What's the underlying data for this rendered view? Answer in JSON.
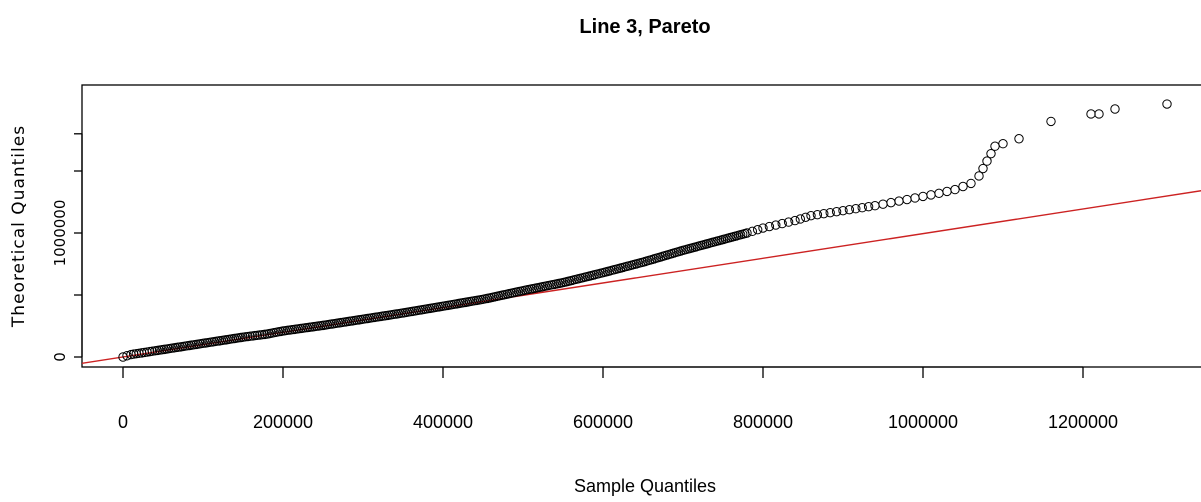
{
  "chart_data": {
    "type": "scatter",
    "title": "Line 3, Pareto",
    "xlabel": "Sample Quantiles",
    "ylabel": "Theoretical Quantiles",
    "xlim": [
      -50000,
      1350000
    ],
    "ylim": [
      -70000,
      2200000
    ],
    "x_ticks": [
      0,
      200000,
      400000,
      600000,
      800000,
      1000000,
      1200000
    ],
    "x_tick_labels": [
      "0",
      "200000",
      "400000",
      "600000",
      "800000",
      "1000000",
      "1200000"
    ],
    "y_ticks": [
      0,
      500000,
      1000000
    ],
    "y_tick_labels": [
      "0",
      "",
      "1000000"
    ],
    "grid": false,
    "point_color": "#000000",
    "line_color": "#cc2222",
    "reference_line": {
      "slope": 0.995,
      "intercept": 0
    },
    "series": [
      {
        "points": [
          [
            0,
            0
          ],
          [
            5000,
            10000
          ],
          [
            10000,
            20000
          ],
          [
            20000,
            30000
          ],
          [
            30000,
            40000
          ],
          [
            40000,
            50000
          ],
          [
            60000,
            70000
          ],
          [
            80000,
            90000
          ],
          [
            100000,
            110000
          ],
          [
            120000,
            130000
          ],
          [
            150000,
            160000
          ],
          [
            180000,
            185000
          ],
          [
            200000,
            210000
          ],
          [
            250000,
            255000
          ],
          [
            300000,
            305000
          ],
          [
            350000,
            355000
          ],
          [
            400000,
            410000
          ],
          [
            450000,
            465000
          ],
          [
            500000,
            535000
          ],
          [
            550000,
            600000
          ],
          [
            600000,
            680000
          ],
          [
            650000,
            765000
          ],
          [
            700000,
            860000
          ],
          [
            740000,
            930000
          ],
          [
            780000,
            1000000
          ],
          [
            800000,
            1040000
          ],
          [
            840000,
            1100000
          ],
          [
            860000,
            1140000
          ],
          [
            900000,
            1180000
          ],
          [
            940000,
            1220000
          ],
          [
            960000,
            1245000
          ],
          [
            980000,
            1270000
          ],
          [
            1000000,
            1295000
          ],
          [
            1020000,
            1320000
          ],
          [
            1040000,
            1350000
          ],
          [
            1060000,
            1400000
          ],
          [
            1070000,
            1460000
          ],
          [
            1090000,
            1700000
          ],
          [
            1100000,
            1720000
          ],
          [
            1120000,
            1760000
          ],
          [
            1160000,
            1900000
          ],
          [
            1210000,
            1960000
          ],
          [
            1220000,
            1960000
          ],
          [
            1240000,
            2000000
          ],
          [
            1305000,
            2040000
          ]
        ]
      }
    ]
  }
}
